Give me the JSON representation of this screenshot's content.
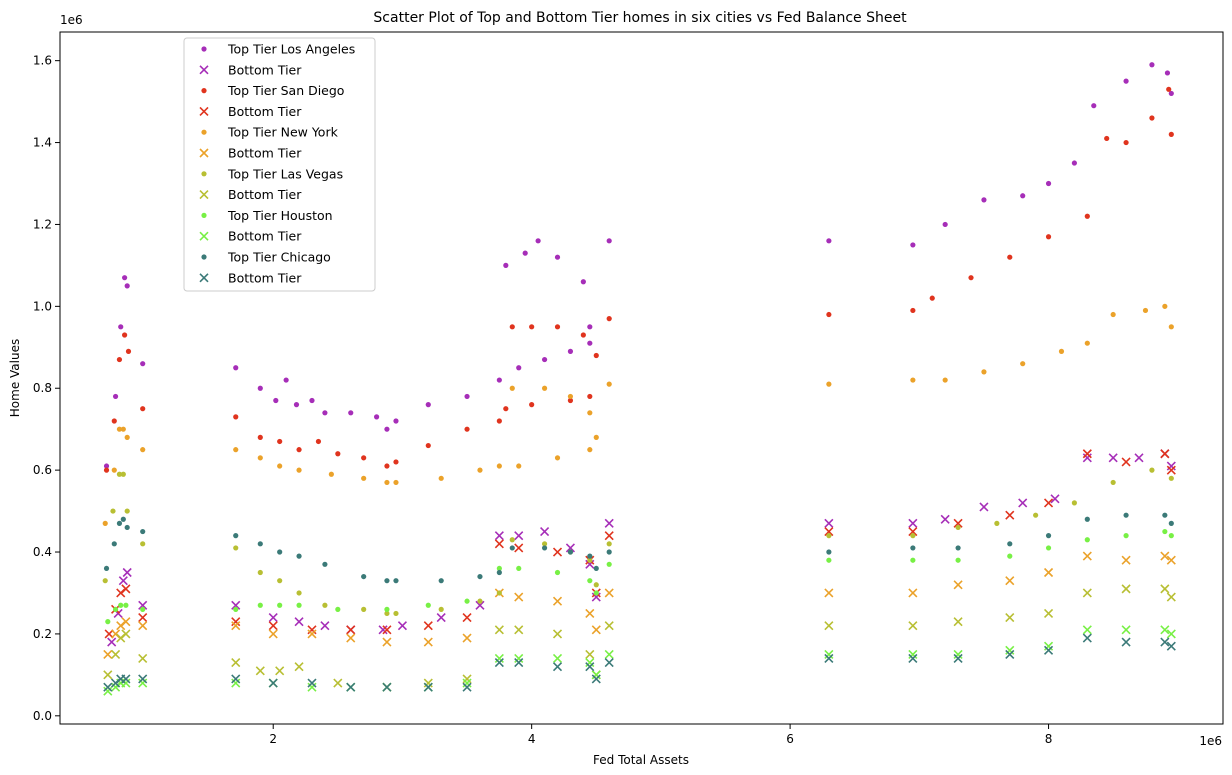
{
  "chart_data": {
    "type": "scatter",
    "title": "Scatter Plot of Top and Bottom Tier homes in six cities vs Fed Balance Sheet",
    "xlabel": "Fed Total Assets",
    "ylabel": "Home Values",
    "x_offset_text": "1e6",
    "y_offset_text": "1e6",
    "xlim": [
      0.35,
      9.35
    ],
    "ylim": [
      -0.02,
      1.67
    ],
    "x_ticks": [
      2,
      4,
      6,
      8
    ],
    "x_tick_labels": [
      "2",
      "4",
      "6",
      "8"
    ],
    "y_ticks": [
      0.0,
      0.2,
      0.4,
      0.6,
      0.8,
      1.0,
      1.2,
      1.4,
      1.6
    ],
    "y_tick_labels": [
      "0.0",
      "0.2",
      "0.4",
      "0.6",
      "0.8",
      "1.0",
      "1.2",
      "1.4",
      "1.6"
    ],
    "grid": false,
    "legend_position": "upper-left",
    "series": [
      {
        "name": "Top Tier Los Angeles",
        "marker": "dot",
        "color": "#a62eb8",
        "x": [
          0.71,
          0.78,
          0.82,
          0.85,
          0.87,
          0.99,
          1.71,
          1.9,
          2.02,
          2.1,
          2.18,
          2.3,
          2.4,
          2.6,
          2.8,
          2.88,
          2.95,
          3.2,
          3.5,
          3.75,
          3.8,
          3.95,
          4.05,
          4.2,
          4.4,
          4.45,
          4.6,
          4.45,
          4.3,
          4.1,
          3.9,
          6.3,
          6.95,
          7.2,
          7.5,
          7.8,
          8.0,
          8.2,
          8.35,
          8.6,
          8.8,
          8.92,
          8.95
        ],
        "y": [
          0.61,
          0.78,
          0.95,
          1.07,
          1.05,
          0.86,
          0.85,
          0.8,
          0.77,
          0.82,
          0.76,
          0.77,
          0.74,
          0.74,
          0.73,
          0.7,
          0.72,
          0.76,
          0.78,
          0.82,
          1.1,
          1.13,
          1.16,
          1.12,
          1.06,
          0.95,
          1.16,
          0.91,
          0.89,
          0.87,
          0.85,
          1.16,
          1.15,
          1.2,
          1.26,
          1.27,
          1.3,
          1.35,
          1.49,
          1.55,
          1.59,
          1.57,
          1.52
        ]
      },
      {
        "name": "Bottom Tier",
        "marker": "x",
        "color": "#a62eb8",
        "x": [
          0.75,
          0.8,
          0.84,
          0.87,
          0.99,
          1.71,
          2.0,
          2.2,
          2.4,
          2.6,
          2.85,
          3.0,
          3.3,
          3.6,
          3.75,
          3.9,
          4.1,
          4.3,
          4.45,
          4.5,
          4.6,
          6.3,
          6.95,
          7.2,
          7.5,
          7.8,
          8.05,
          8.3,
          8.5,
          8.7,
          8.9,
          8.95
        ],
        "y": [
          0.18,
          0.25,
          0.33,
          0.35,
          0.27,
          0.27,
          0.24,
          0.23,
          0.22,
          0.21,
          0.21,
          0.22,
          0.24,
          0.27,
          0.44,
          0.44,
          0.45,
          0.41,
          0.37,
          0.29,
          0.47,
          0.47,
          0.47,
          0.48,
          0.51,
          0.52,
          0.53,
          0.63,
          0.63,
          0.63,
          0.64,
          0.61
        ]
      },
      {
        "name": "Top Tier San Diego",
        "marker": "dot",
        "color": "#e0341e",
        "x": [
          0.71,
          0.77,
          0.81,
          0.85,
          0.88,
          0.99,
          1.71,
          1.9,
          2.05,
          2.2,
          2.35,
          2.5,
          2.7,
          2.88,
          2.95,
          3.2,
          3.5,
          3.75,
          3.85,
          4.0,
          4.2,
          4.4,
          4.5,
          4.45,
          4.3,
          4.0,
          3.8,
          4.6,
          6.3,
          6.95,
          7.1,
          7.4,
          7.7,
          8.0,
          8.3,
          8.45,
          8.6,
          8.8,
          8.93,
          8.95
        ],
        "y": [
          0.6,
          0.72,
          0.87,
          0.93,
          0.89,
          0.75,
          0.73,
          0.68,
          0.67,
          0.65,
          0.67,
          0.64,
          0.63,
          0.61,
          0.62,
          0.66,
          0.7,
          0.72,
          0.95,
          0.95,
          0.95,
          0.93,
          0.88,
          0.78,
          0.77,
          0.76,
          0.75,
          0.97,
          0.98,
          0.99,
          1.02,
          1.07,
          1.12,
          1.17,
          1.22,
          1.41,
          1.4,
          1.46,
          1.53,
          1.42
        ]
      },
      {
        "name": "Bottom Tier",
        "marker": "x",
        "color": "#e0341e",
        "x": [
          0.73,
          0.78,
          0.82,
          0.86,
          0.99,
          1.71,
          2.0,
          2.3,
          2.6,
          2.88,
          3.2,
          3.5,
          3.75,
          3.9,
          4.2,
          4.45,
          4.5,
          4.6,
          6.3,
          6.95,
          7.3,
          7.7,
          8.0,
          8.3,
          8.6,
          8.9,
          8.95
        ],
        "y": [
          0.2,
          0.26,
          0.3,
          0.31,
          0.24,
          0.23,
          0.22,
          0.21,
          0.21,
          0.21,
          0.22,
          0.24,
          0.42,
          0.41,
          0.4,
          0.38,
          0.3,
          0.44,
          0.45,
          0.45,
          0.47,
          0.49,
          0.52,
          0.64,
          0.62,
          0.64,
          0.6
        ]
      },
      {
        "name": "Top Tier New York",
        "marker": "dot",
        "color": "#eba22a",
        "x": [
          0.7,
          0.77,
          0.81,
          0.84,
          0.87,
          0.99,
          1.71,
          1.9,
          2.05,
          2.2,
          2.45,
          2.7,
          2.88,
          2.95,
          3.3,
          3.6,
          3.75,
          3.85,
          4.1,
          4.3,
          4.45,
          4.5,
          4.45,
          4.2,
          3.9,
          4.6,
          6.3,
          6.95,
          7.2,
          7.5,
          7.8,
          8.1,
          8.3,
          8.5,
          8.75,
          8.9,
          8.95
        ],
        "y": [
          0.47,
          0.6,
          0.7,
          0.7,
          0.68,
          0.65,
          0.65,
          0.63,
          0.61,
          0.6,
          0.59,
          0.58,
          0.57,
          0.57,
          0.58,
          0.6,
          0.61,
          0.8,
          0.8,
          0.78,
          0.74,
          0.68,
          0.65,
          0.63,
          0.61,
          0.81,
          0.81,
          0.82,
          0.82,
          0.84,
          0.86,
          0.89,
          0.91,
          0.98,
          0.99,
          1.0,
          0.95
        ]
      },
      {
        "name": "Bottom Tier",
        "marker": "x",
        "color": "#eba22a",
        "x": [
          0.72,
          0.78,
          0.82,
          0.86,
          0.99,
          1.71,
          2.0,
          2.3,
          2.6,
          2.88,
          3.2,
          3.5,
          3.75,
          3.9,
          4.2,
          4.45,
          4.5,
          4.6,
          6.3,
          6.95,
          7.3,
          7.7,
          8.0,
          8.3,
          8.6,
          8.9,
          8.95
        ],
        "y": [
          0.15,
          0.2,
          0.22,
          0.23,
          0.22,
          0.22,
          0.2,
          0.2,
          0.19,
          0.18,
          0.18,
          0.19,
          0.3,
          0.29,
          0.28,
          0.25,
          0.21,
          0.3,
          0.3,
          0.3,
          0.32,
          0.33,
          0.35,
          0.39,
          0.38,
          0.39,
          0.38
        ]
      },
      {
        "name": "Top Tier Las Vegas",
        "marker": "dot",
        "color": "#b8bf33",
        "x": [
          0.7,
          0.76,
          0.81,
          0.84,
          0.87,
          0.99,
          1.71,
          1.9,
          2.05,
          2.2,
          2.4,
          2.7,
          2.88,
          2.95,
          3.3,
          3.6,
          3.75,
          3.85,
          4.1,
          4.3,
          4.45,
          4.5,
          4.6,
          6.3,
          6.95,
          7.3,
          7.6,
          7.9,
          8.2,
          8.5,
          8.8,
          8.95
        ],
        "y": [
          0.33,
          0.5,
          0.59,
          0.59,
          0.5,
          0.42,
          0.41,
          0.35,
          0.33,
          0.3,
          0.27,
          0.26,
          0.25,
          0.25,
          0.26,
          0.28,
          0.3,
          0.43,
          0.42,
          0.4,
          0.38,
          0.32,
          0.42,
          0.44,
          0.44,
          0.46,
          0.47,
          0.49,
          0.52,
          0.57,
          0.6,
          0.58
        ]
      },
      {
        "name": "Bottom Tier",
        "marker": "x",
        "color": "#b8bf33",
        "x": [
          0.72,
          0.78,
          0.82,
          0.86,
          0.99,
          1.71,
          1.9,
          2.05,
          2.2,
          2.5,
          2.88,
          3.2,
          3.5,
          3.75,
          3.9,
          4.2,
          4.45,
          4.5,
          4.6,
          6.3,
          6.95,
          7.3,
          7.7,
          8.0,
          8.3,
          8.6,
          8.9,
          8.95
        ],
        "y": [
          0.1,
          0.15,
          0.19,
          0.2,
          0.14,
          0.13,
          0.11,
          0.11,
          0.12,
          0.08,
          0.07,
          0.08,
          0.09,
          0.21,
          0.21,
          0.2,
          0.15,
          0.1,
          0.22,
          0.22,
          0.22,
          0.23,
          0.24,
          0.25,
          0.3,
          0.31,
          0.31,
          0.29
        ]
      },
      {
        "name": "Top Tier Houston",
        "marker": "dot",
        "color": "#78f045",
        "x": [
          0.72,
          0.78,
          0.82,
          0.86,
          0.99,
          1.71,
          1.9,
          2.05,
          2.2,
          2.5,
          2.88,
          3.2,
          3.5,
          3.75,
          3.9,
          4.2,
          4.45,
          4.5,
          4.6,
          6.3,
          6.95,
          7.3,
          7.7,
          8.0,
          8.3,
          8.6,
          8.9,
          8.95
        ],
        "y": [
          0.23,
          0.26,
          0.27,
          0.27,
          0.26,
          0.26,
          0.27,
          0.27,
          0.27,
          0.26,
          0.26,
          0.27,
          0.28,
          0.36,
          0.36,
          0.35,
          0.33,
          0.3,
          0.37,
          0.38,
          0.38,
          0.38,
          0.39,
          0.41,
          0.43,
          0.44,
          0.45,
          0.44
        ]
      },
      {
        "name": "Bottom Tier",
        "marker": "x",
        "color": "#78f045",
        "x": [
          0.72,
          0.78,
          0.82,
          0.86,
          0.99,
          1.71,
          2.0,
          2.3,
          2.6,
          2.88,
          3.2,
          3.5,
          3.75,
          3.9,
          4.2,
          4.45,
          4.5,
          4.6,
          6.3,
          6.95,
          7.3,
          7.7,
          8.0,
          8.3,
          8.6,
          8.9,
          8.95
        ],
        "y": [
          0.06,
          0.07,
          0.08,
          0.08,
          0.08,
          0.08,
          0.08,
          0.07,
          0.07,
          0.07,
          0.07,
          0.08,
          0.14,
          0.14,
          0.14,
          0.13,
          0.1,
          0.15,
          0.15,
          0.15,
          0.15,
          0.16,
          0.17,
          0.21,
          0.21,
          0.21,
          0.2
        ]
      },
      {
        "name": "Top Tier Chicago",
        "marker": "dot",
        "color": "#3b7a78",
        "x": [
          0.71,
          0.77,
          0.81,
          0.84,
          0.87,
          0.99,
          1.71,
          1.9,
          2.05,
          2.2,
          2.4,
          2.7,
          2.88,
          2.95,
          3.3,
          3.6,
          3.75,
          3.85,
          4.1,
          4.3,
          4.45,
          4.5,
          4.6,
          6.3,
          6.95,
          7.3,
          7.7,
          8.0,
          8.3,
          8.6,
          8.9,
          8.95
        ],
        "y": [
          0.36,
          0.42,
          0.47,
          0.48,
          0.46,
          0.45,
          0.44,
          0.42,
          0.4,
          0.39,
          0.37,
          0.34,
          0.33,
          0.33,
          0.33,
          0.34,
          0.35,
          0.41,
          0.41,
          0.4,
          0.39,
          0.36,
          0.4,
          0.4,
          0.41,
          0.41,
          0.42,
          0.44,
          0.48,
          0.49,
          0.49,
          0.47
        ]
      },
      {
        "name": "Bottom Tier",
        "marker": "x",
        "color": "#3b7a78",
        "x": [
          0.72,
          0.78,
          0.82,
          0.86,
          0.99,
          1.71,
          2.0,
          2.3,
          2.6,
          2.88,
          3.2,
          3.5,
          3.75,
          3.9,
          4.2,
          4.45,
          4.5,
          4.6,
          6.3,
          6.95,
          7.3,
          7.7,
          8.0,
          8.3,
          8.6,
          8.9,
          8.95
        ],
        "y": [
          0.07,
          0.08,
          0.09,
          0.09,
          0.09,
          0.09,
          0.08,
          0.08,
          0.07,
          0.07,
          0.07,
          0.07,
          0.13,
          0.13,
          0.12,
          0.12,
          0.09,
          0.13,
          0.14,
          0.14,
          0.14,
          0.15,
          0.16,
          0.19,
          0.18,
          0.18,
          0.17
        ]
      }
    ]
  }
}
